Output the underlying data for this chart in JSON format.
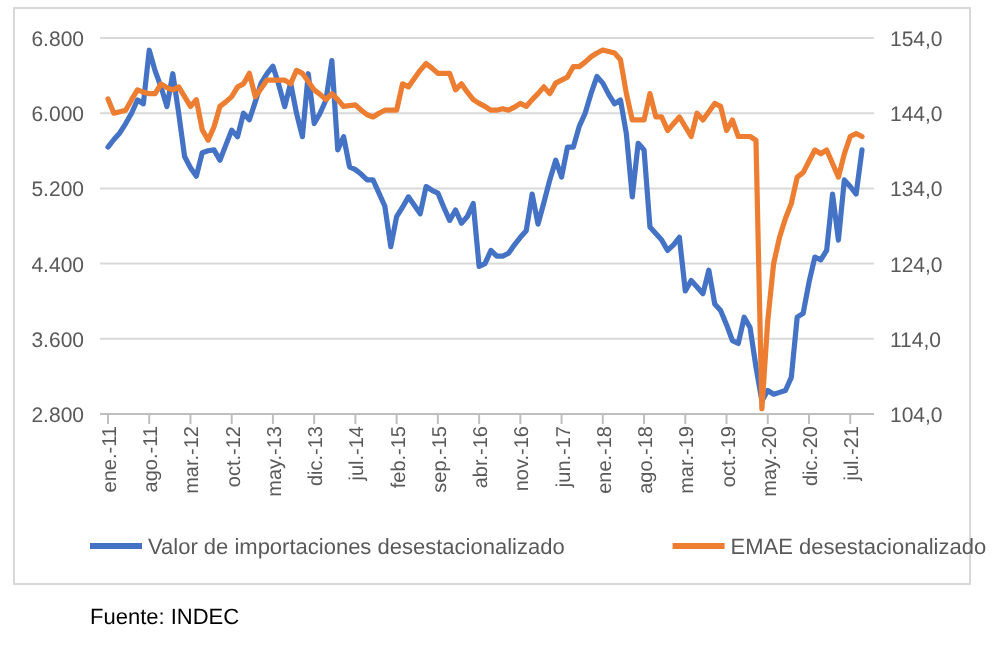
{
  "chart_data": {
    "type": "line",
    "categories": [
      "ene.-11",
      null,
      null,
      null,
      null,
      null,
      null,
      "ago.-11",
      null,
      null,
      null,
      null,
      null,
      null,
      "mar.-12",
      null,
      null,
      null,
      null,
      null,
      null,
      "oct.-12",
      null,
      null,
      null,
      null,
      null,
      null,
      "may.-13",
      null,
      null,
      null,
      null,
      null,
      null,
      "dic.-13",
      null,
      null,
      null,
      null,
      null,
      null,
      "jul.-14",
      null,
      null,
      null,
      null,
      null,
      null,
      "feb.-15",
      null,
      null,
      null,
      null,
      null,
      null,
      "sep.-15",
      null,
      null,
      null,
      null,
      null,
      null,
      "abr.-16",
      null,
      null,
      null,
      null,
      null,
      null,
      "nov.-16",
      null,
      null,
      null,
      null,
      null,
      null,
      "jun.-17",
      null,
      null,
      null,
      null,
      null,
      null,
      "ene.-18",
      null,
      null,
      null,
      null,
      null,
      null,
      "ago.-18",
      null,
      null,
      null,
      null,
      null,
      null,
      "mar.-19",
      null,
      null,
      null,
      null,
      null,
      null,
      "oct.-19",
      null,
      null,
      null,
      null,
      null,
      null,
      "may.-20",
      null,
      null,
      null,
      null,
      null,
      null,
      "dic.-20",
      null,
      null,
      null,
      null,
      null,
      null,
      "jul.-21",
      null,
      null
    ],
    "series": [
      {
        "name": "Valor de importaciones desestacionalizado",
        "color": "#4472c4",
        "values": [
          5640,
          5720,
          5790,
          5890,
          6000,
          6140,
          6100,
          6670,
          6450,
          6280,
          6070,
          6420,
          6000,
          5540,
          5420,
          5330,
          5580,
          5600,
          5610,
          5500,
          5660,
          5820,
          5750,
          6000,
          5930,
          6120,
          6320,
          6420,
          6500,
          6300,
          6070,
          6320,
          6000,
          5750,
          6420,
          5890,
          6000,
          6140,
          6560,
          5610,
          5750,
          5430,
          5400,
          5350,
          5290,
          5290,
          5150,
          5010,
          4580,
          4900,
          5000,
          5110,
          5020,
          4930,
          5220,
          5180,
          5150,
          5000,
          4860,
          4970,
          4830,
          4900,
          5040,
          4370,
          4400,
          4540,
          4480,
          4480,
          4510,
          4600,
          4680,
          4750,
          5140,
          4820,
          5050,
          5290,
          5500,
          5320,
          5640,
          5640,
          5860,
          6000,
          6210,
          6390,
          6320,
          6200,
          6100,
          6140,
          5780,
          5110,
          5680,
          5610,
          4790,
          4720,
          4650,
          4540,
          4600,
          4680,
          4110,
          4220,
          4150,
          4080,
          4330,
          3970,
          3900,
          3750,
          3580,
          3550,
          3830,
          3720,
          3300,
          2940,
          3050,
          3010,
          3030,
          3050,
          3190,
          3830,
          3870,
          4200,
          4470,
          4440,
          4540,
          5140,
          4650,
          5290,
          5220,
          5140,
          5610
        ]
      },
      {
        "name": "EMAE desestacionalizado",
        "color": "#ed7d31",
        "axis": "y2",
        "values": [
          145.9,
          144.0,
          144.2,
          144.4,
          145.8,
          147.1,
          146.8,
          146.6,
          146.6,
          147.9,
          147.4,
          147.1,
          147.5,
          146.2,
          144.9,
          145.8,
          141.8,
          140.4,
          142.2,
          144.9,
          145.5,
          146.2,
          147.5,
          147.9,
          149.3,
          146.2,
          147.3,
          148.4,
          148.4,
          148.4,
          148.4,
          147.9,
          149.7,
          149.3,
          148.2,
          147.1,
          146.5,
          145.8,
          146.6,
          145.8,
          144.9,
          145.0,
          145.1,
          144.4,
          143.8,
          143.5,
          144.0,
          144.4,
          144.4,
          144.4,
          147.9,
          147.5,
          148.6,
          149.7,
          150.6,
          150.0,
          149.3,
          149.3,
          149.3,
          147.1,
          147.9,
          146.8,
          145.8,
          145.3,
          144.9,
          144.4,
          144.4,
          144.6,
          144.4,
          144.8,
          145.3,
          144.9,
          145.8,
          146.6,
          147.5,
          146.6,
          148.0,
          148.4,
          148.8,
          150.2,
          150.2,
          150.8,
          151.5,
          152.0,
          152.4,
          152.2,
          152.0,
          151.1,
          146.6,
          143.1,
          143.1,
          143.1,
          146.6,
          143.5,
          143.5,
          141.7,
          142.6,
          143.5,
          142.2,
          140.9,
          144.0,
          143.1,
          144.2,
          145.3,
          144.9,
          141.7,
          143.1,
          140.9,
          140.9,
          140.9,
          140.4,
          104.7,
          116.4,
          124.0,
          127.5,
          130.0,
          132.0,
          135.5,
          136.1,
          137.6,
          139.1,
          138.6,
          139.1,
          137.3,
          135.5,
          138.6,
          140.9,
          141.3,
          140.9
        ]
      }
    ],
    "ylim": [
      2800,
      6800
    ],
    "yticks": [
      {
        "value": 2800,
        "label": "2.800"
      },
      {
        "value": 3600,
        "label": "3.600"
      },
      {
        "value": 4400,
        "label": "4.400"
      },
      {
        "value": 5200,
        "label": "5.200"
      },
      {
        "value": 6000,
        "label": "6.000"
      },
      {
        "value": 6800,
        "label": "6.800"
      }
    ],
    "y2lim": [
      104,
      154
    ],
    "y2ticks": [
      {
        "value": 104,
        "label": "104,0"
      },
      {
        "value": 114,
        "label": "114,0"
      },
      {
        "value": 124,
        "label": "124,0"
      },
      {
        "value": 134,
        "label": "134,0"
      },
      {
        "value": 144,
        "label": "144,0"
      },
      {
        "value": 154,
        "label": "154,0"
      }
    ],
    "grid": "y",
    "legend": "bottom",
    "marker": "none",
    "line_style": "solid",
    "annotations": [
      "Fuente: INDEC"
    ]
  }
}
